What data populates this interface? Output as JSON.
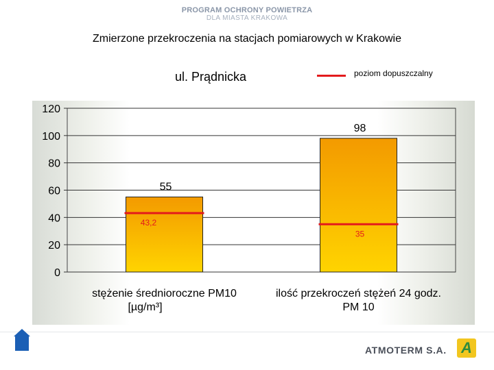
{
  "brand": {
    "line1": "PROGRAM OCHRONY POWIETRZA",
    "line2": "DLA MIASTA KRAKOWA"
  },
  "slide_title": "Zmierzone przekroczenia na stacjach pomiarowych w Krakowie",
  "footer": {
    "company": "ATMOTERM S.A.",
    "logo_letter": "A"
  },
  "chart_data": {
    "type": "bar",
    "title": "ul. Prądnicka",
    "categories": [
      [
        "stężenie średnioroczne PM10",
        "[µg/m³]"
      ],
      [
        "ilość przekroczeń stężeń 24 godz.",
        "PM 10"
      ]
    ],
    "series": [
      {
        "values": [
          55,
          98
        ],
        "labels": [
          "55",
          "98"
        ],
        "color": "#f7a600"
      }
    ],
    "limit_series": {
      "name": "poziom dopuszczalny",
      "values": [
        43.2,
        35
      ],
      "labels": [
        "43,2",
        "35"
      ],
      "color": "#e31a1c"
    },
    "ylim": [
      0,
      120
    ],
    "yticks": [
      0,
      20,
      40,
      60,
      80,
      100,
      120
    ],
    "grid": true,
    "legend": "top-right"
  }
}
